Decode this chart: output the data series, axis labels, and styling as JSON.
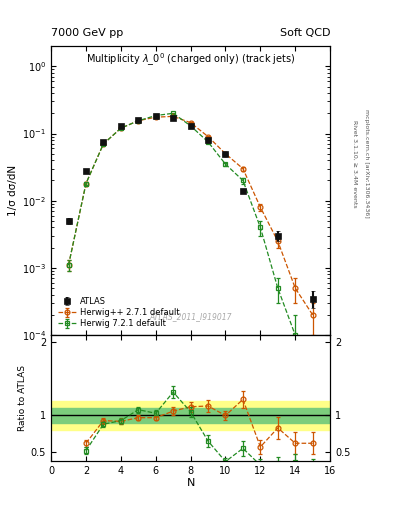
{
  "title_top_left": "7000 GeV pp",
  "title_top_right": "Soft QCD",
  "main_title": "Multiplicity $\\lambda\\_0^0$ (charged only) (track jets)",
  "watermark": "ATLAS_2011_I919017",
  "right_label_top": "Rivet 3.1.10, ≥ 3.4M events",
  "right_label_bottom": "mcplots.cern.ch [arXiv:1306.3436]",
  "ylabel_main": "1/σ dσ/dN",
  "ylabel_ratio": "Ratio to ATLAS",
  "xlabel": "N",
  "ylim_main_log": [
    0.0001,
    2.0
  ],
  "ylim_ratio": [
    0.38,
    2.1
  ],
  "xlim": [
    0,
    16
  ],
  "atlas_N": [
    1,
    2,
    3,
    4,
    5,
    6,
    7,
    8,
    9,
    10,
    11,
    13,
    15
  ],
  "atlas_vals": [
    0.005,
    0.028,
    0.075,
    0.13,
    0.16,
    0.18,
    0.17,
    0.13,
    0.08,
    0.05,
    0.014,
    0.003,
    0.00035
  ],
  "atlas_err": [
    0.0005,
    0.001,
    0.002,
    0.003,
    0.003,
    0.003,
    0.003,
    0.003,
    0.002,
    0.002,
    0.001,
    0.0005,
    0.0001
  ],
  "hppN": [
    1,
    2,
    3,
    4,
    5,
    6,
    7,
    8,
    9,
    10,
    11,
    12,
    13,
    14,
    15
  ],
  "hpp_vals": [
    0.0011,
    0.018,
    0.07,
    0.12,
    0.155,
    0.175,
    0.18,
    0.145,
    0.09,
    0.05,
    0.03,
    0.008,
    0.0025,
    0.0005,
    0.0002
  ],
  "hpp_err": [
    0.0002,
    0.001,
    0.002,
    0.002,
    0.002,
    0.002,
    0.002,
    0.002,
    0.002,
    0.002,
    0.002,
    0.001,
    0.0005,
    0.0002,
    0.0001
  ],
  "h72N": [
    1,
    2,
    3,
    4,
    5,
    6,
    7,
    8,
    9,
    10,
    11,
    12,
    13,
    14,
    15
  ],
  "h72_vals": [
    0.0011,
    0.018,
    0.07,
    0.12,
    0.155,
    0.185,
    0.2,
    0.13,
    0.075,
    0.035,
    0.02,
    0.004,
    0.0005,
    0.0001,
    3e-05
  ],
  "h72_err": [
    0.0002,
    0.001,
    0.002,
    0.002,
    0.002,
    0.002,
    0.002,
    0.002,
    0.002,
    0.002,
    0.002,
    0.001,
    0.0002,
    0.0001,
    1e-05
  ],
  "ratio_hpp_N": [
    2,
    3,
    4,
    5,
    6,
    7,
    8,
    9,
    10,
    11,
    12,
    13,
    14,
    15
  ],
  "ratio_hpp_vals": [
    0.62,
    0.93,
    0.92,
    0.97,
    0.97,
    1.06,
    1.12,
    1.13,
    1.0,
    1.22,
    0.57,
    0.83,
    0.62,
    0.62
  ],
  "ratio_hpp_err": [
    0.05,
    0.04,
    0.03,
    0.03,
    0.03,
    0.05,
    0.07,
    0.08,
    0.06,
    0.12,
    0.1,
    0.15,
    0.15,
    0.15
  ],
  "ratio_h72_N": [
    2,
    3,
    4,
    5,
    6,
    7,
    8,
    9,
    10,
    11,
    12,
    13,
    14,
    15
  ],
  "ratio_h72_vals": [
    0.52,
    0.88,
    0.93,
    1.08,
    1.03,
    1.32,
    1.05,
    0.65,
    0.37,
    0.55,
    0.32,
    0.35,
    0.37,
    0.3
  ],
  "ratio_h72_err": [
    0.05,
    0.04,
    0.04,
    0.04,
    0.04,
    0.08,
    0.07,
    0.08,
    0.05,
    0.1,
    0.08,
    0.08,
    0.1,
    0.1
  ],
  "band_green_lo": 0.9,
  "band_green_hi": 1.1,
  "band_yellow_lo": 0.8,
  "band_yellow_hi": 1.2,
  "color_atlas": "#111111",
  "color_hpp": "#cc5500",
  "color_h72": "#228B22",
  "color_band_green": "#7CCD7C",
  "color_band_yellow": "#FFFF88"
}
